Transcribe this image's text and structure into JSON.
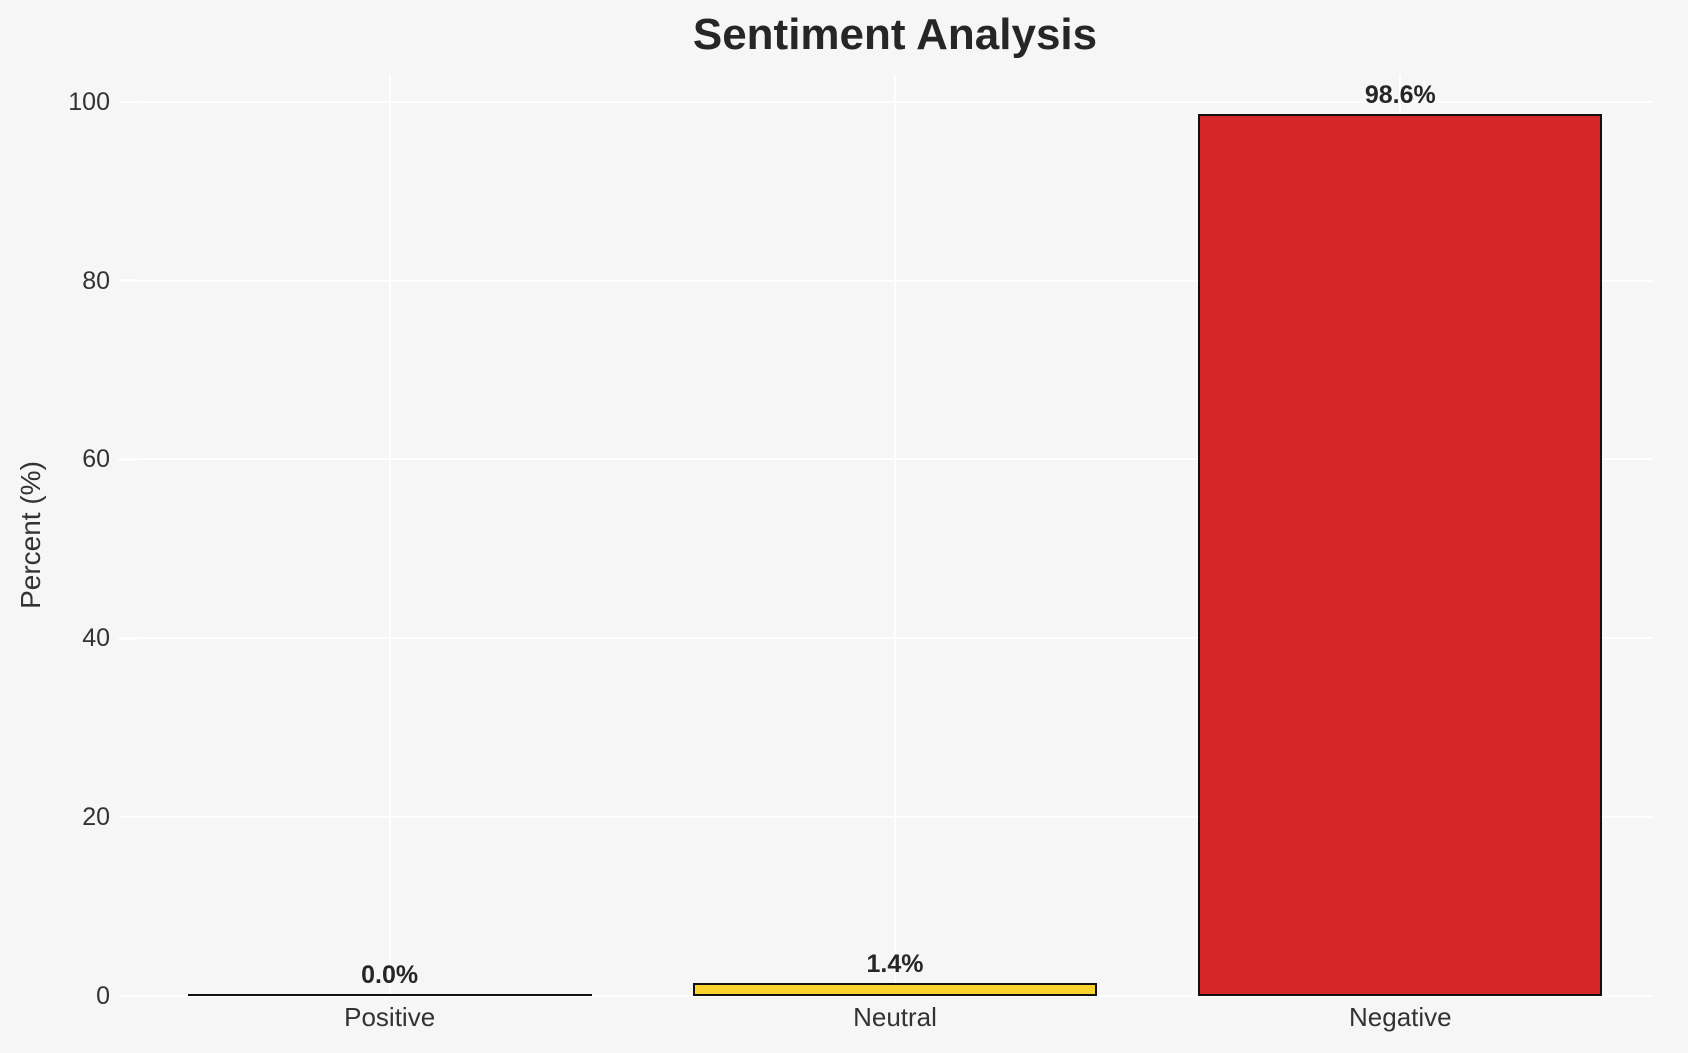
{
  "figure": {
    "background_color": "#f6f6f7",
    "grid_color": "#ffffff",
    "title_color": "#262626",
    "tick_label_color": "#333333"
  },
  "chart_data": {
    "type": "bar",
    "title": "Sentiment Analysis",
    "xlabel": "",
    "ylabel": "Percent (%)",
    "categories": [
      "Positive",
      "Neutral",
      "Negative"
    ],
    "values": [
      0.0,
      1.4,
      98.6
    ],
    "value_labels": [
      "0.0%",
      "1.4%",
      "98.6%"
    ],
    "bar_colors": [
      "none",
      "#fcd32e",
      "#d62728"
    ],
    "bar_edge_color": "#111111",
    "yticks": [
      0,
      20,
      40,
      60,
      80,
      100
    ],
    "ytick_labels": [
      "0",
      "20",
      "40",
      "60",
      "80",
      "100"
    ],
    "ylim": [
      0,
      103
    ],
    "grid": true,
    "legend_position": "none"
  }
}
